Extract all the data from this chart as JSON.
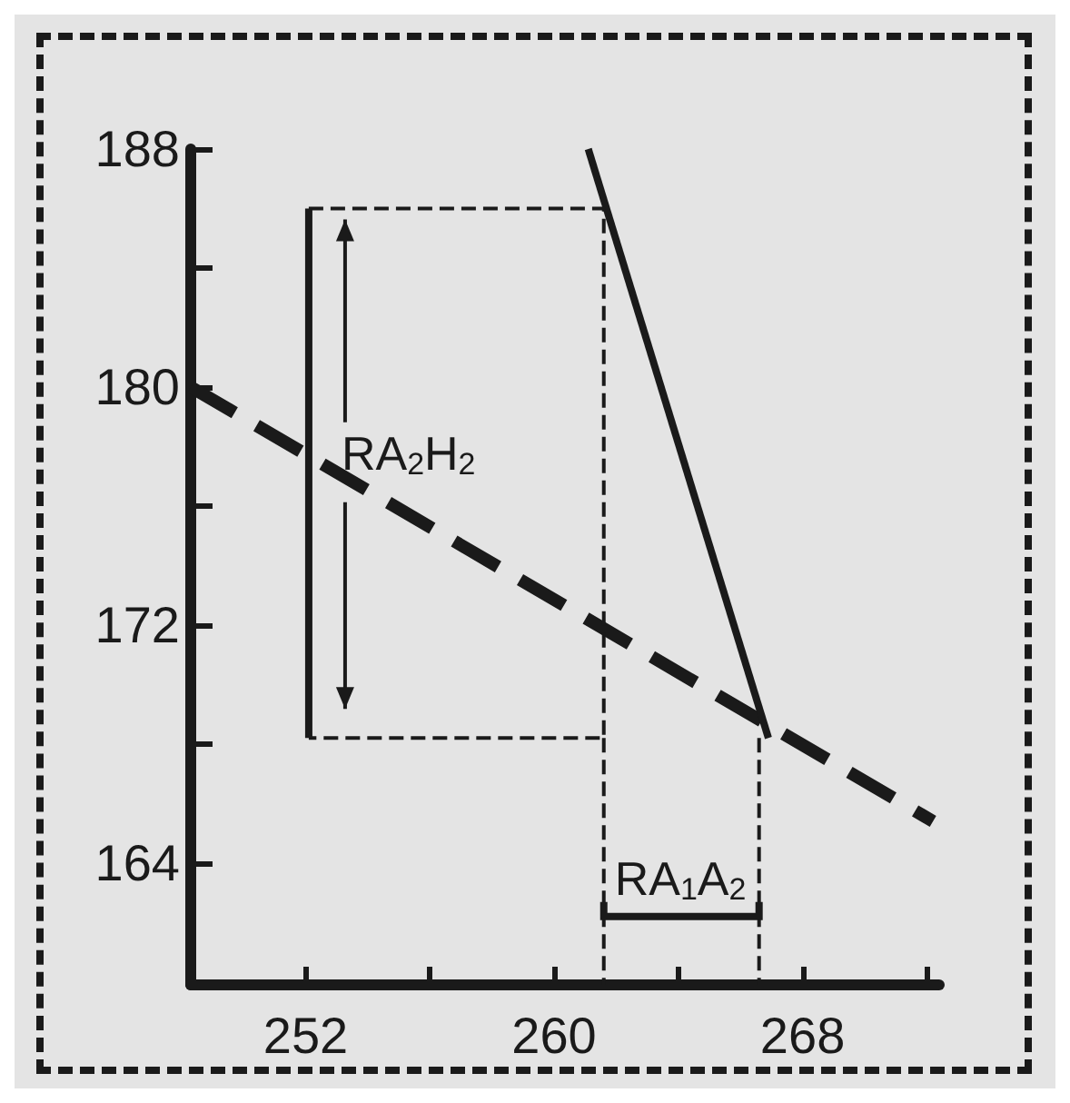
{
  "chart_data": {
    "type": "line",
    "series": [
      {
        "color": "#1a1a1a",
        "x": [
          248.3,
          272.2
        ],
        "values": [
          180,
          165.4
        ],
        "line_style": "dashed"
      },
      {
        "color": "#1a1a1a",
        "x": [
          261.1,
          266.9
        ],
        "values": [
          188,
          168.2
        ],
        "line_style": "solid"
      },
      {
        "color": "#1a1a1a",
        "x": [
          252.1,
          261.6,
          261.6,
          252.1
        ],
        "values": [
          186,
          186,
          168.2,
          168.2
        ],
        "line_style": "dashed"
      },
      {
        "color": "#1a1a1a",
        "x": [
          252.1,
          252.1
        ],
        "values": [
          186,
          168.2
        ],
        "line_style": "solid"
      },
      {
        "color": "#1a1a1a",
        "x": [
          261.6,
          261.6
        ],
        "values": [
          168.2,
          159.9
        ],
        "line_style": "dashed"
      },
      {
        "color": "#1a1a1a",
        "x": [
          266.6,
          266.6
        ],
        "values": [
          168.2,
          159.9
        ],
        "line_style": "dashed"
      }
    ],
    "xlim": [
      248.3,
      272.4
    ],
    "ylim": [
      159.9,
      188
    ],
    "xticks": [
      252,
      {
        "value": 256,
        "label": null
      },
      260,
      {
        "value": 264,
        "label": null
      },
      268,
      {
        "value": 272,
        "label": null
      }
    ],
    "yticks": [
      164,
      {
        "value": 168,
        "label": null
      },
      172,
      {
        "value": 176,
        "label": null
      },
      180,
      {
        "value": 184,
        "label": null
      },
      188
    ],
    "annotations": [
      "RA$_{2}$H$_{2}$",
      {
        "text": "RA$_{1}$A$_{2}$",
        "x": 261.6,
        "y": 162.2
      }
    ],
    "grid": false,
    "marker": "none"
  }
}
